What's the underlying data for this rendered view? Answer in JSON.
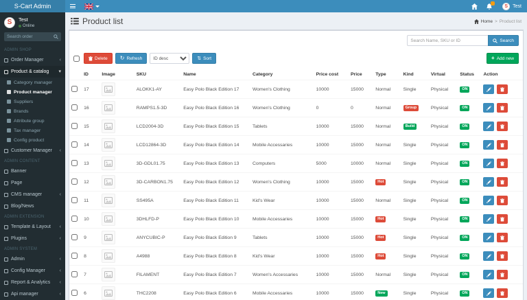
{
  "colors": {
    "primary": "#3c8dbc",
    "danger": "#dd4b39",
    "success": "#00a65a",
    "warning": "#f39c12",
    "sidebar_bg": "#222d32",
    "content_bg": "#ecf0f5"
  },
  "topbar": {
    "brand": "S-Cart Admin",
    "user_label": "Test",
    "language_flag": "uk-flag"
  },
  "page": {
    "title": "Product list"
  },
  "breadcrumb": {
    "home": "Home",
    "separator": ">",
    "current": "Product list"
  },
  "sidebar": {
    "user_name": "Test",
    "user_status": "Online",
    "search_placeholder": "Search order",
    "entries": [
      {
        "type": "section",
        "label": "ADMIN SHOP"
      },
      {
        "type": "item",
        "label": "Order Manager",
        "icon": "order-manager-icon",
        "caret": true
      },
      {
        "type": "item",
        "label": "Product & catalog",
        "icon": "product-catalog-icon",
        "open": true
      },
      {
        "type": "subitem",
        "label": "Category manager",
        "icon": "category-manager-icon"
      },
      {
        "type": "subitem",
        "label": "Product manager",
        "icon": "product-manager-icon",
        "active": true
      },
      {
        "type": "subitem",
        "label": "Suppliers",
        "icon": "suppliers-icon"
      },
      {
        "type": "subitem",
        "label": "Brands",
        "icon": "brands-icon"
      },
      {
        "type": "subitem",
        "label": "Attribute group",
        "icon": "attribute-group-icon"
      },
      {
        "type": "subitem",
        "label": "Tax manager",
        "icon": "tax-manager-icon"
      },
      {
        "type": "subitem",
        "label": "Config product",
        "icon": "config-product-icon"
      },
      {
        "type": "item",
        "label": "Customer Manager",
        "icon": "customer-manager-icon",
        "caret": true
      },
      {
        "type": "section",
        "label": "ADMIN CONTENT"
      },
      {
        "type": "item",
        "label": "Banner",
        "icon": "banner-icon"
      },
      {
        "type": "item",
        "label": "Page",
        "icon": "page-icon"
      },
      {
        "type": "item",
        "label": "CMS manager",
        "icon": "cms-manager-icon",
        "caret": true
      },
      {
        "type": "item",
        "label": "Blog/News",
        "icon": "blog-news-icon"
      },
      {
        "type": "section",
        "label": "ADMIN EXTENSION"
      },
      {
        "type": "item",
        "label": "Template & Layout",
        "icon": "template-layout-icon",
        "caret": true
      },
      {
        "type": "item",
        "label": "Plugins",
        "icon": "plugins-icon",
        "caret": true
      },
      {
        "type": "section",
        "label": "ADMIN SYSTEM"
      },
      {
        "type": "item",
        "label": "Admin",
        "icon": "admin-icon",
        "caret": true
      },
      {
        "type": "item",
        "label": "Config Manager",
        "icon": "config-manager-icon",
        "caret": true
      },
      {
        "type": "item",
        "label": "Report & Analytics",
        "icon": "report-analytics-icon",
        "caret": true
      },
      {
        "type": "item",
        "label": "Api manager",
        "icon": "api-manager-icon",
        "caret": true
      }
    ]
  },
  "search": {
    "placeholder": "Search Name, SKU or ID",
    "button_label": "Search"
  },
  "toolbar": {
    "delete_label": "Delete",
    "refresh_label": "Refresh",
    "sort_value": "ID desc",
    "sort_label": "Sort",
    "add_new_label": "Add new"
  },
  "table": {
    "headers": [
      "ID",
      "Image",
      "SKU",
      "Name",
      "Category",
      "Price cost",
      "Price",
      "Type",
      "Kind",
      "Virtual",
      "Status",
      "Action"
    ],
    "rows": [
      {
        "id": "17",
        "sku": "ALOKK1-AY",
        "name": "Easy Polo Black Edition 17",
        "category": "Women's Clothing",
        "price_cost": "10000",
        "price": "15000",
        "type": "Normal",
        "type_style": "text",
        "kind": "Single",
        "kind_style": "text",
        "virtual": "Physical",
        "status": "ON"
      },
      {
        "id": "16",
        "sku": "RAMPS1.5-3D",
        "name": "Easy Polo Black Edition 16",
        "category": "Women's Clothing",
        "price_cost": "0",
        "price": "0",
        "type": "Normal",
        "type_style": "text",
        "kind": "Group",
        "kind_style": "danger",
        "virtual": "Physical",
        "status": "ON"
      },
      {
        "id": "15",
        "sku": "LCD2004-3D",
        "name": "Easy Polo Black Edition 15",
        "category": "Tablets",
        "price_cost": "10000",
        "price": "15000",
        "type": "Normal",
        "type_style": "text",
        "kind": "Build",
        "kind_style": "success",
        "virtual": "Physical",
        "status": "ON"
      },
      {
        "id": "14",
        "sku": "LCD12864-3D",
        "name": "Easy Polo Black Edition 14",
        "category": "Mobile Accessaries",
        "price_cost": "10000",
        "price": "15000",
        "type": "Normal",
        "type_style": "text",
        "kind": "Single",
        "kind_style": "text",
        "virtual": "Physical",
        "status": "ON"
      },
      {
        "id": "13",
        "sku": "3D-GDL01.75",
        "name": "Easy Polo Black Edition 13",
        "category": "Computers",
        "price_cost": "5000",
        "price": "10000",
        "type": "Normal",
        "type_style": "text",
        "kind": "Single",
        "kind_style": "text",
        "virtual": "Physical",
        "status": "ON"
      },
      {
        "id": "12",
        "sku": "3D-CARBON1.75",
        "name": "Easy Polo Black Edition 12",
        "category": "Women's Clothing",
        "price_cost": "10000",
        "price": "15000",
        "type": "Hot",
        "type_style": "danger",
        "kind": "Single",
        "kind_style": "text",
        "virtual": "Physical",
        "status": "ON"
      },
      {
        "id": "11",
        "sku": "SS495A",
        "name": "Easy Polo Black Edition 11",
        "category": "Kid's Wear",
        "price_cost": "10000",
        "price": "15000",
        "type": "Normal",
        "type_style": "text",
        "kind": "Single",
        "kind_style": "text",
        "virtual": "Physical",
        "status": "ON"
      },
      {
        "id": "10",
        "sku": "3DHLFD-P",
        "name": "Easy Polo Black Edition 10",
        "category": "Mobile Accessaries",
        "price_cost": "10000",
        "price": "15000",
        "type": "Hot",
        "type_style": "danger",
        "kind": "Single",
        "kind_style": "text",
        "virtual": "Physical",
        "status": "ON"
      },
      {
        "id": "9",
        "sku": "ANYCUBIC-P",
        "name": "Easy Polo Black Edition 9",
        "category": "Tablets",
        "price_cost": "10000",
        "price": "15000",
        "type": "Hot",
        "type_style": "danger",
        "kind": "Single",
        "kind_style": "text",
        "virtual": "Physical",
        "status": "ON"
      },
      {
        "id": "8",
        "sku": "A4988",
        "name": "Easy Polo Black Edition 8",
        "category": "Kid's Wear",
        "price_cost": "10000",
        "price": "15000",
        "type": "Hot",
        "type_style": "danger",
        "kind": "Single",
        "kind_style": "text",
        "virtual": "Physical",
        "status": "ON"
      },
      {
        "id": "7",
        "sku": "FILAMENT",
        "name": "Easy Polo Black Edition 7",
        "category": "Women's Accessaries",
        "price_cost": "10000",
        "price": "15000",
        "type": "Normal",
        "type_style": "text",
        "kind": "Single",
        "kind_style": "text",
        "virtual": "Physical",
        "status": "ON"
      },
      {
        "id": "6",
        "sku": "THC2208",
        "name": "Easy Polo Black Edition 6",
        "category": "Mobile Accessaries",
        "price_cost": "10000",
        "price": "15000",
        "type": "New",
        "type_style": "success",
        "kind": "Single",
        "kind_style": "text",
        "virtual": "Physical",
        "status": "ON"
      }
    ]
  }
}
